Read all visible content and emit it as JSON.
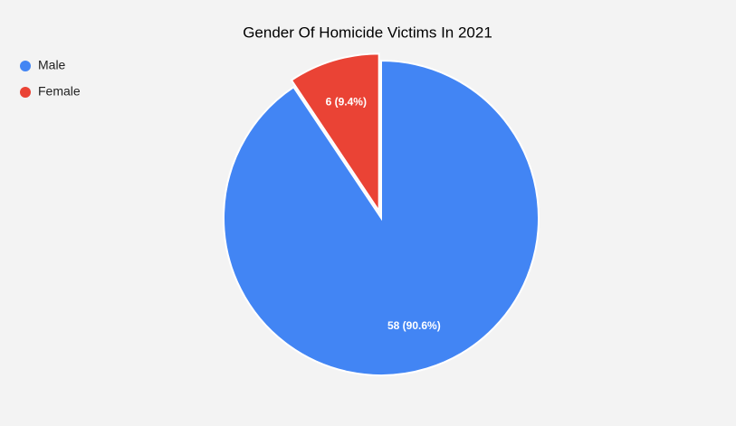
{
  "chart_data": {
    "type": "pie",
    "title": "Gender Of Homicide Victims In 2021",
    "categories": [
      "Male",
      "Female"
    ],
    "values": [
      58,
      6
    ],
    "value_labels": [
      "58 (90.6%)",
      "6 (9.4%)"
    ],
    "colors": [
      "#4285f4",
      "#ea4335"
    ],
    "legend": "top-left"
  }
}
